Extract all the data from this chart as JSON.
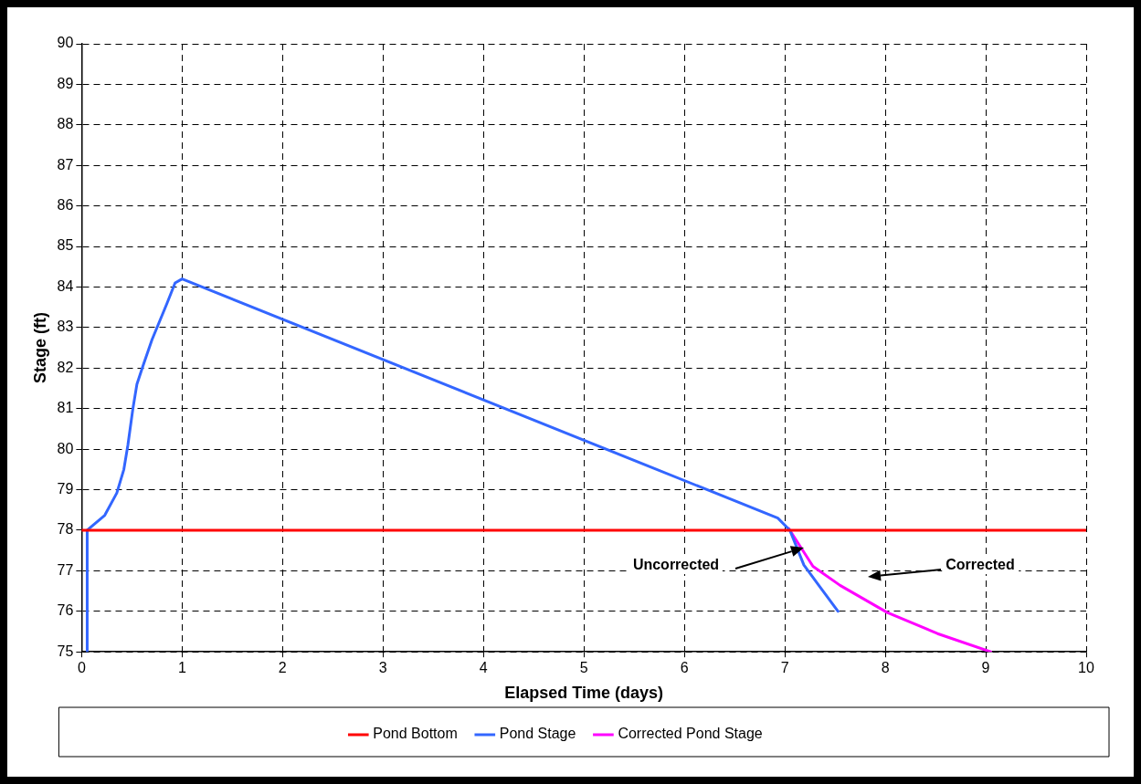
{
  "chart_data": {
    "type": "line",
    "xlabel": "Elapsed Time (days)",
    "ylabel": "Stage (ft)",
    "xlim": [
      0,
      10
    ],
    "xticks": [
      0,
      1,
      2,
      3,
      4,
      5,
      6,
      7,
      8,
      9,
      10
    ],
    "ylim": [
      75,
      90
    ],
    "yticks": [
      75,
      76,
      77,
      78,
      79,
      80,
      81,
      82,
      83,
      84,
      85,
      86,
      87,
      88,
      89,
      90
    ],
    "grid": true,
    "legend": "bottom",
    "marker": "none",
    "line_style": "solid",
    "series": [
      {
        "name": "Pond Bottom",
        "color": "#ff0000",
        "x": [
          0,
          10
        ],
        "values": [
          78,
          78
        ]
      },
      {
        "name": "Pond Stage",
        "color": "#3366ff",
        "x": [
          0.055,
          0.055,
          0.23,
          0.35,
          0.42,
          0.46,
          0.51,
          0.55,
          0.61,
          0.7,
          0.85,
          0.93,
          1.0,
          6.93,
          7.05,
          7.19,
          7.35,
          7.53
        ],
        "values": [
          75,
          78,
          78.37,
          78.92,
          79.5,
          80.1,
          81.0,
          81.6,
          82.05,
          82.7,
          83.6,
          84.1,
          84.2,
          78.3,
          78.0,
          77.14,
          76.6,
          76.0
        ]
      },
      {
        "name": "Corrected Pond Stage",
        "color": "#ff00ff",
        "x": [
          7.04,
          7.28,
          7.55,
          8.02,
          8.52,
          9.05
        ],
        "values": [
          78.04,
          77.11,
          76.64,
          75.97,
          75.45,
          75.0
        ]
      }
    ],
    "annotations": [
      "Uncorrected",
      "Corrected"
    ]
  }
}
